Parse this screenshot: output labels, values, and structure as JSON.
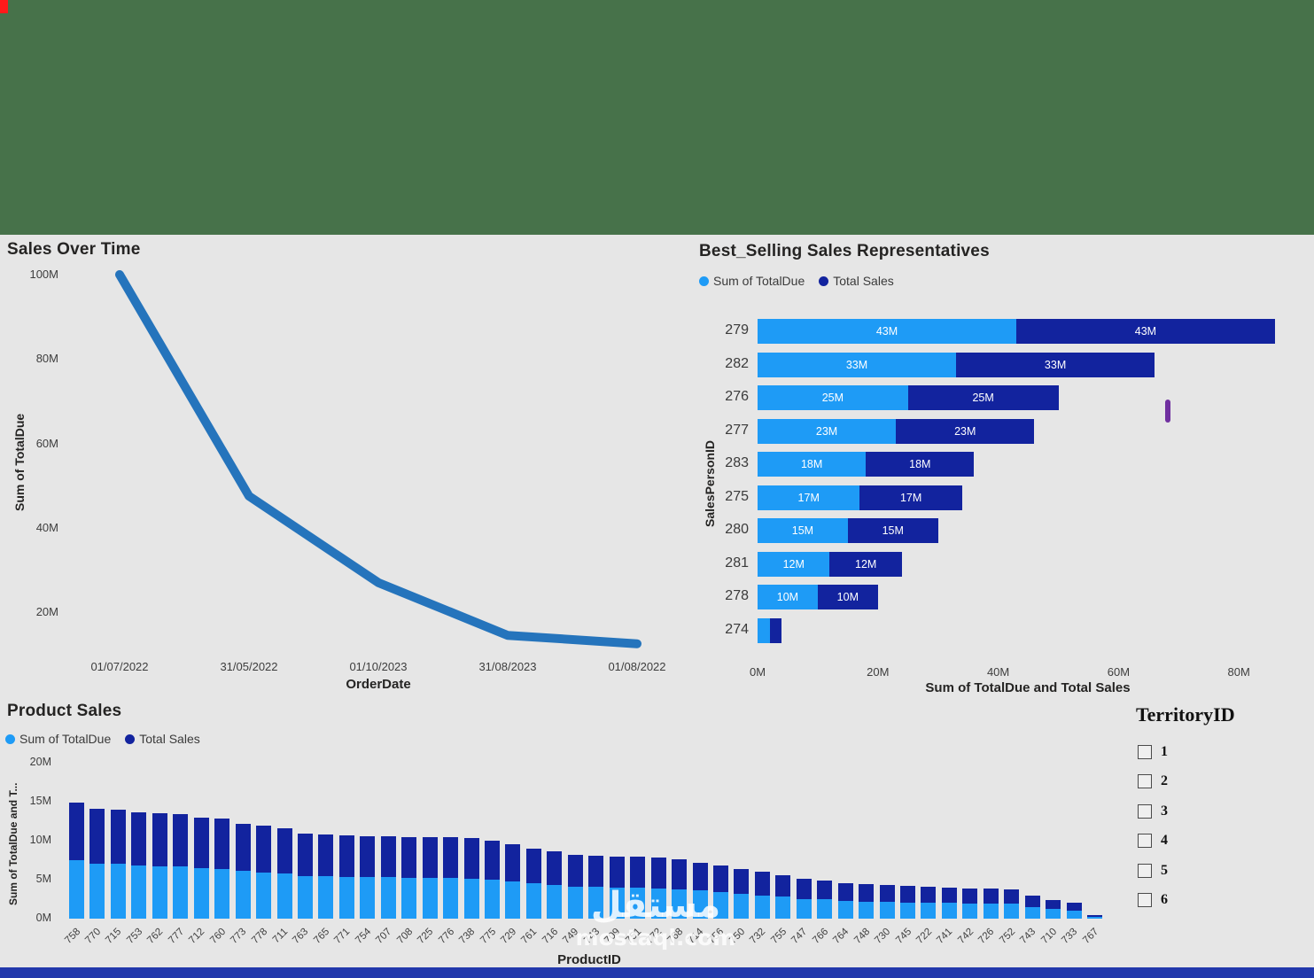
{
  "page": {
    "colors": {
      "background": "#E6E6E6",
      "header_green": "#47724A",
      "bottom_strip": "#2238AC",
      "corner_red": "#FF1A1A",
      "light_blue": "#1E9BF6",
      "dark_blue": "#12239E",
      "line_blue": "#2574BC",
      "scroll_purple": "#7030A0"
    },
    "watermark": {
      "line1": "مستقل",
      "line2": "mostaql.com"
    }
  },
  "territory_slicer": {
    "title": "TerritoryID",
    "options": [
      "1",
      "2",
      "3",
      "4",
      "5",
      "6"
    ]
  },
  "chart_data": [
    {
      "type": "line",
      "title": "Sales Over Time",
      "xlabel": "OrderDate",
      "ylabel": "Sum of TotalDue",
      "x_tick_labels": [
        "01/07/2022",
        "31/05/2022",
        "01/10/2023",
        "31/08/2023",
        "01/08/2022"
      ],
      "values_M": [
        100,
        47.5,
        27,
        14.5,
        12.5
      ],
      "y_ticks_M": [
        20,
        40,
        60,
        80,
        100
      ],
      "ylim_M": [
        10,
        100
      ],
      "series_color": "#2574BC",
      "grid": false,
      "legend_position": "none"
    },
    {
      "type": "bar",
      "orientation": "horizontal",
      "stacked": true,
      "title": "Best_Selling Sales Representatives",
      "xlabel": "Sum of TotalDue and Total Sales",
      "ylabel": "SalesPersonID",
      "categories": [
        "279",
        "282",
        "276",
        "277",
        "283",
        "275",
        "280",
        "281",
        "278",
        "274"
      ],
      "series": [
        {
          "name": "Sum of TotalDue",
          "color": "#1E9BF6",
          "values_M": [
            43,
            33,
            25,
            23,
            18,
            17,
            15,
            12,
            10,
            2
          ],
          "labels": [
            "43M",
            "33M",
            "25M",
            "23M",
            "18M",
            "17M",
            "15M",
            "12M",
            "10M",
            ""
          ]
        },
        {
          "name": "Total Sales",
          "color": "#12239E",
          "values_M": [
            43,
            33,
            25,
            23,
            18,
            17,
            15,
            12,
            10,
            2
          ],
          "labels": [
            "43M",
            "33M",
            "25M",
            "23M",
            "18M",
            "17M",
            "15M",
            "12M",
            "10M",
            ""
          ]
        }
      ],
      "x_ticks_M": [
        0,
        20,
        40,
        60,
        80
      ],
      "xlim_M": [
        0,
        92
      ],
      "legend_position": "top"
    },
    {
      "type": "bar",
      "orientation": "vertical",
      "stacked": true,
      "title": "Product Sales",
      "xlabel": "ProductID",
      "ylabel": "Sum of TotalDue and T...",
      "categories": [
        "758",
        "770",
        "715",
        "753",
        "762",
        "777",
        "712",
        "760",
        "773",
        "778",
        "711",
        "763",
        "765",
        "771",
        "754",
        "707",
        "708",
        "725",
        "776",
        "738",
        "775",
        "729",
        "761",
        "716",
        "749",
        "743",
        "709",
        "751",
        "772",
        "768",
        "714",
        "756",
        "750",
        "732",
        "755",
        "747",
        "766",
        "764",
        "748",
        "730",
        "745",
        "722",
        "741",
        "742",
        "726",
        "752",
        "743",
        "710",
        "733",
        "767"
      ],
      "series": [
        {
          "name": "Sum of TotalDue",
          "color": "#1E9BF6",
          "values_M": [
            7.45,
            7.05,
            7.0,
            6.8,
            6.75,
            6.7,
            6.45,
            6.4,
            6.1,
            5.95,
            5.8,
            5.45,
            5.4,
            5.35,
            5.3,
            5.3,
            5.25,
            5.25,
            5.2,
            5.15,
            5.0,
            4.8,
            4.5,
            4.3,
            4.1,
            4.05,
            4.0,
            3.95,
            3.9,
            3.8,
            3.6,
            3.4,
            3.2,
            3.0,
            2.8,
            2.55,
            2.45,
            2.3,
            2.2,
            2.15,
            2.1,
            2.05,
            2.0,
            1.95,
            1.95,
            1.9,
            1.45,
            1.2,
            1.05,
            0.25
          ]
        },
        {
          "name": "Total Sales",
          "color": "#12239E",
          "values_M": [
            7.45,
            7.05,
            7.0,
            6.8,
            6.75,
            6.7,
            6.45,
            6.4,
            6.1,
            5.95,
            5.8,
            5.45,
            5.4,
            5.35,
            5.3,
            5.3,
            5.25,
            5.25,
            5.2,
            5.15,
            5.0,
            4.8,
            4.5,
            4.3,
            4.1,
            4.05,
            4.0,
            3.95,
            3.9,
            3.8,
            3.6,
            3.4,
            3.2,
            3.0,
            2.8,
            2.55,
            2.45,
            2.3,
            2.2,
            2.15,
            2.1,
            2.05,
            2.0,
            1.95,
            1.95,
            1.9,
            1.45,
            1.2,
            1.05,
            0.25
          ]
        }
      ],
      "y_ticks_M": [
        0,
        5,
        10,
        15,
        20
      ],
      "ylim_M": [
        0,
        20
      ],
      "legend_position": "top"
    }
  ]
}
